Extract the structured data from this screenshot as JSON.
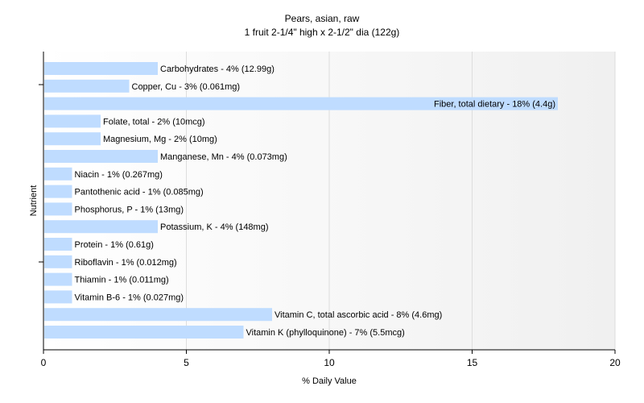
{
  "chart_data": {
    "type": "bar",
    "orientation": "horizontal",
    "title": "Pears, asian, raw",
    "subtitle": "1 fruit 2-1/4\" high x 2-1/2\" dia (122g)",
    "xlabel": "% Daily Value",
    "ylabel": "Nutrient",
    "xlim": [
      0,
      20
    ],
    "xticks": [
      0,
      5,
      10,
      15,
      20
    ],
    "grid": true,
    "bar_color": "#bfdcff",
    "categories": [
      "Carbohydrates",
      "Copper, Cu",
      "Fiber, total dietary",
      "Folate, total",
      "Magnesium, Mg",
      "Manganese, Mn",
      "Niacin",
      "Pantothenic acid",
      "Phosphorus, P",
      "Potassium, K",
      "Protein",
      "Riboflavin",
      "Thiamin",
      "Vitamin B-6",
      "Vitamin C, total ascorbic acid",
      "Vitamin K (phylloquinone)"
    ],
    "values": [
      4,
      3,
      18,
      2,
      2,
      4,
      1,
      1,
      1,
      4,
      1,
      1,
      1,
      1,
      8,
      7
    ],
    "amounts": [
      "12.99g",
      "0.061mg",
      "4.4g",
      "10mcg",
      "10mg",
      "0.073mg",
      "0.267mg",
      "0.085mg",
      "13mg",
      "148mg",
      "0.61g",
      "0.012mg",
      "0.011mg",
      "0.027mg",
      "4.6mg",
      "5.5mcg"
    ],
    "labels": [
      "Carbohydrates - 4% (12.99g)",
      "Copper, Cu - 3% (0.061mg)",
      "Fiber, total dietary - 18% (4.4g)",
      "Folate, total - 2% (10mcg)",
      "Magnesium, Mg - 2% (10mg)",
      "Manganese, Mn - 4% (0.073mg)",
      "Niacin - 1% (0.267mg)",
      "Pantothenic acid - 1% (0.085mg)",
      "Phosphorus, P - 1% (13mg)",
      "Potassium, K - 4% (148mg)",
      "Protein - 1% (0.61g)",
      "Riboflavin - 1% (0.012mg)",
      "Thiamin - 1% (0.011mg)",
      "Vitamin B-6 - 1% (0.027mg)",
      "Vitamin C, total ascorbic acid - 8% (4.6mg)",
      "Vitamin K (phylloquinone) - 7% (5.5mcg)"
    ]
  }
}
